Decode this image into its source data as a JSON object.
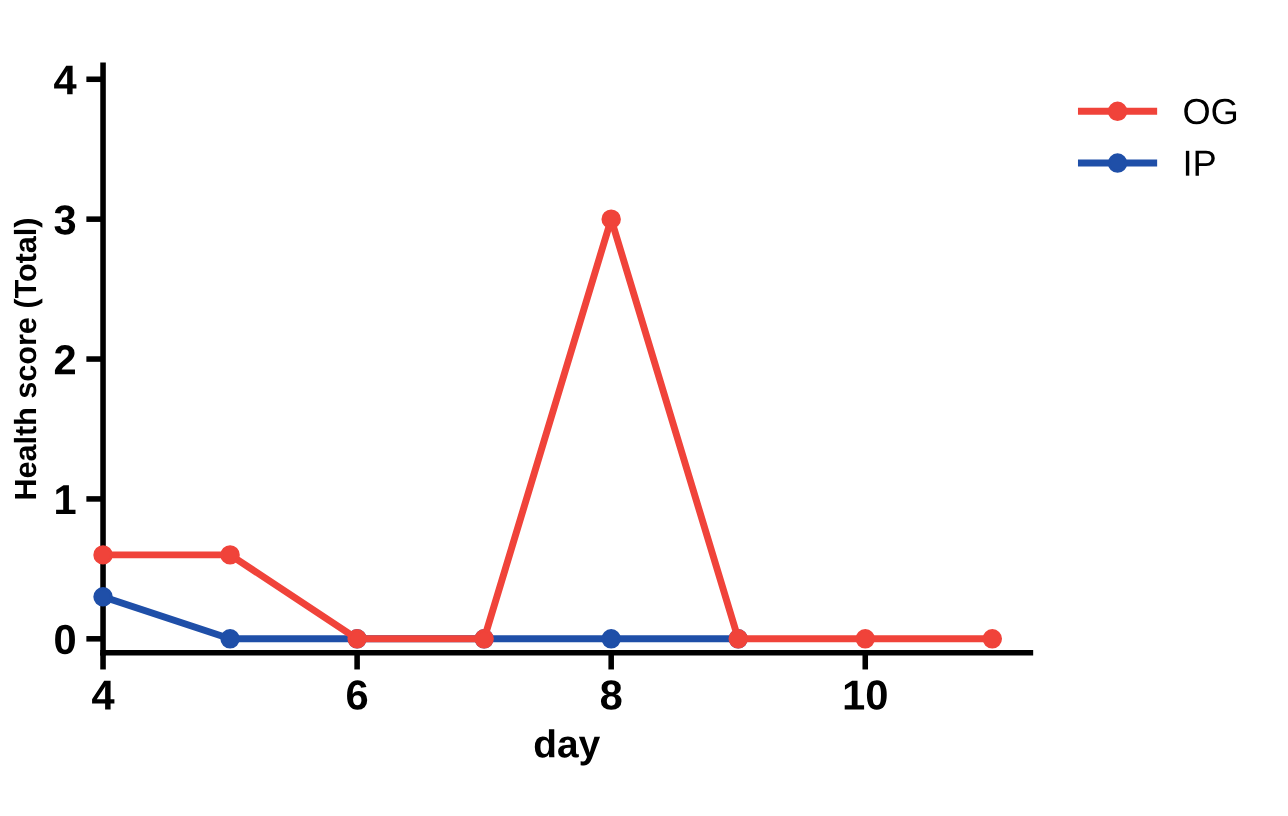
{
  "chart_data": {
    "type": "line",
    "xlabel": "day",
    "ylabel": "Health score (Total)",
    "xlim": [
      4,
      11.3
    ],
    "xticks": [
      4,
      6,
      8,
      10
    ],
    "ylim": [
      -0.1,
      4.1
    ],
    "yticks": [
      0,
      1,
      2,
      3,
      4
    ],
    "marker": "circle",
    "line_style": "solid",
    "grid": false,
    "legend": "top right",
    "series": [
      {
        "name": "IP",
        "color": "#1f4fa8",
        "x": [
          4,
          5,
          6,
          7,
          8,
          9
        ],
        "values": [
          0.3,
          0,
          0,
          0,
          0,
          0
        ]
      },
      {
        "name": "OG",
        "color": "#f0433a",
        "x": [
          4,
          5,
          6,
          7,
          8,
          9,
          10,
          11
        ],
        "values": [
          0.6,
          0.6,
          0,
          0,
          3,
          0,
          0,
          0
        ]
      }
    ]
  }
}
